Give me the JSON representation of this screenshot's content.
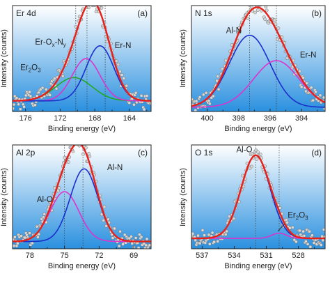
{
  "colors": {
    "data_fill": "#d8d8d8",
    "fit": "#e8201a",
    "bg_top": "#ffffff",
    "bg_bottom": "#2a90df",
    "frame": "#222222"
  },
  "chart_data": [
    {
      "type": "scatter",
      "panel": "Er 4d",
      "letter": "(a)",
      "xlabel": "Binding energy (eV)",
      "ylabel": "Intensity (counts)",
      "xlim": [
        177.5,
        161.5
      ],
      "xticks": [
        176,
        172,
        168,
        164
      ],
      "vlines": [
        170.2,
        168.9,
        166.8
      ],
      "baseline": 0.1,
      "components": [
        {
          "name": "Er2O3",
          "center": 170.4,
          "sigma": 2.1,
          "amp": 0.22,
          "color": "#22aa22"
        },
        {
          "name": "Er-Ox-Ny",
          "center": 169.0,
          "sigma": 1.6,
          "amp": 0.4,
          "color": "#dd33cc"
        },
        {
          "name": "Er-N",
          "center": 167.4,
          "sigma": 1.6,
          "amp": 0.52,
          "color": "#1a2ecc"
        }
      ],
      "labels": [
        {
          "text": "Er-N",
          "sub": "",
          "x": 165.7,
          "y": 0.6
        },
        {
          "text": "Er-O",
          "sub": "x",
          "text2": "-N",
          "sub2": "y",
          "x": 174.9,
          "y": 0.63
        },
        {
          "text": "Er",
          "sub": "2",
          "text2": "O",
          "sub2": "3",
          "x": 176.6,
          "y": 0.39
        }
      ]
    },
    {
      "type": "scatter",
      "panel": "N 1s",
      "letter": "(b)",
      "xlabel": "Binding energy (eV)",
      "ylabel": "Intensity (counts)",
      "xlim": [
        401,
        392.5
      ],
      "xticks": [
        400,
        398,
        396,
        394
      ],
      "vlines": [
        397.3,
        395.6
      ],
      "baseline": 0.04,
      "components": [
        {
          "name": "Al-N",
          "center": 397.3,
          "sigma": 1.3,
          "amp": 0.68,
          "color": "#1a2ecc"
        },
        {
          "name": "Er-N",
          "center": 395.6,
          "sigma": 1.45,
          "amp": 0.44,
          "color": "#dd33cc"
        }
      ],
      "labels": [
        {
          "text": "Al-N",
          "sub": "",
          "x": 398.8,
          "y": 0.74
        },
        {
          "text": "Er-N",
          "sub": "",
          "x": 394.1,
          "y": 0.51
        }
      ]
    },
    {
      "type": "scatter",
      "panel": "Al 2p",
      "letter": "(c)",
      "xlabel": "Binding energy (eV)",
      "ylabel": "Intensity (counts)",
      "xlim": [
        79.5,
        67.5
      ],
      "xticks": [
        78,
        75,
        72,
        69
      ],
      "vlines": [
        75.0,
        73.4
      ],
      "baseline": 0.07,
      "components": [
        {
          "name": "Al-O",
          "center": 75.0,
          "sigma": 1.25,
          "amp": 0.48,
          "color": "#dd33cc"
        },
        {
          "name": "Al-N",
          "center": 73.3,
          "sigma": 1.2,
          "amp": 0.7,
          "color": "#1a2ecc"
        }
      ],
      "labels": [
        {
          "text": "Al-N",
          "sub": "",
          "x": 71.3,
          "y": 0.76
        },
        {
          "text": "Al-O",
          "sub": "",
          "x": 77.4,
          "y": 0.45
        }
      ]
    },
    {
      "type": "scatter",
      "panel": "O 1s",
      "letter": "(d)",
      "xlabel": "Binding energy (eV)",
      "ylabel": "Intensity (counts)",
      "xlim": [
        538,
        525.5
      ],
      "xticks": [
        537,
        534,
        531,
        528
      ],
      "vlines": [
        532.0,
        529.8
      ],
      "baseline": 0.1,
      "components": [
        {
          "name": "Al-O",
          "center": 532.0,
          "sigma": 1.35,
          "amp": 0.8,
          "color": "#1a2ecc"
        },
        {
          "name": "Er2O3",
          "center": 529.8,
          "sigma": 0.7,
          "amp": 0.05,
          "color": "#dd33cc"
        }
      ],
      "labels": [
        {
          "text": "Al-O",
          "sub": "",
          "x": 533.8,
          "y": 0.93
        },
        {
          "text": "Er",
          "sub": "2",
          "text2": "O",
          "sub2": "3",
          "x": 529.0,
          "y": 0.3
        }
      ]
    }
  ]
}
